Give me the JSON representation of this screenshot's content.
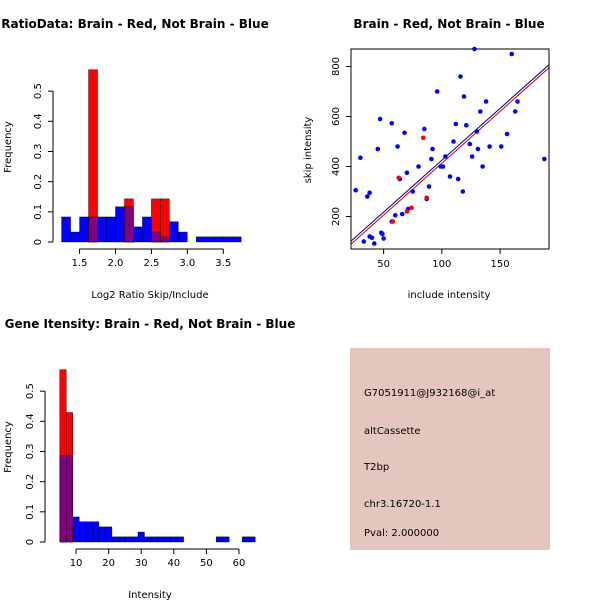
{
  "colors": {
    "red": "#ff0000",
    "blue": "#0000ff",
    "overlap": "#800080",
    "dark_red": "#cc0000",
    "info_bg": "#e5c6bf",
    "fit_red": "#cc0000",
    "fit_blue": "#000080"
  },
  "chart_data": [
    {
      "type": "bar",
      "title": "RatioData: Brain - Red, Not Brain - Blue",
      "xlabel": "Log2 Ratio Skip/Include",
      "ylabel": "Frequency",
      "xlim": [
        1.2,
        3.9
      ],
      "ylim": [
        0,
        0.58
      ],
      "xticks": [
        1.5,
        2.0,
        2.5,
        3.0,
        3.5
      ],
      "xtick_labels": [
        "1.5",
        "2.0",
        "2.5",
        "3.0",
        "3.5"
      ],
      "yticks": [
        0,
        0.1,
        0.2,
        0.3,
        0.4,
        0.5
      ],
      "ytick_labels": [
        "0",
        "0.1",
        "0.2",
        "0.3",
        "0.4",
        "0.5"
      ],
      "bin_width": 0.125,
      "series": [
        {
          "name": "Not Brain",
          "color": "blue",
          "bins": [
            [
              1.25,
              0.083
            ],
            [
              1.375,
              0.033
            ],
            [
              1.5,
              0.083
            ],
            [
              1.625,
              0.083
            ],
            [
              1.75,
              0.083
            ],
            [
              1.875,
              0.083
            ],
            [
              2.0,
              0.117
            ],
            [
              2.125,
              0.117
            ],
            [
              2.25,
              0.05
            ],
            [
              2.375,
              0.083
            ],
            [
              2.5,
              0.033
            ],
            [
              2.625,
              0.017
            ],
            [
              2.75,
              0.067
            ],
            [
              2.875,
              0.033
            ],
            [
              3.125,
              0.017
            ],
            [
              3.25,
              0.017
            ],
            [
              3.375,
              0.017
            ],
            [
              3.5,
              0.017
            ],
            [
              3.625,
              0.017
            ]
          ]
        },
        {
          "name": "Brain",
          "color": "red",
          "bins": [
            [
              1.625,
              0.571
            ],
            [
              2.125,
              0.143
            ],
            [
              2.5,
              0.143
            ],
            [
              2.625,
              0.143
            ]
          ]
        }
      ]
    },
    {
      "type": "scatter",
      "title": "Brain - Red, Not Brain - Blue",
      "xlabel": "include intensity",
      "ylabel": "skip intensity",
      "xlim": [
        22,
        192
      ],
      "ylim": [
        70,
        870
      ],
      "xticks": [
        50,
        100,
        150
      ],
      "xtick_labels": [
        "50",
        "100",
        "150"
      ],
      "yticks": [
        200,
        400,
        600,
        800
      ],
      "ytick_labels": [
        "200",
        "400",
        "600",
        "800"
      ],
      "fit_lines": [
        {
          "name": "red fit",
          "color": "fit_red",
          "intercept": -2,
          "slope": 4.15
        },
        {
          "name": "blue fit",
          "color": "fit_blue",
          "intercept": 10,
          "slope": 4.15
        }
      ],
      "series": [
        {
          "name": "Not Brain",
          "color": "blue",
          "points": [
            [
              26,
              305
            ],
            [
              30,
              435
            ],
            [
              33,
              100
            ],
            [
              36,
              280
            ],
            [
              38,
              295
            ],
            [
              38,
              120
            ],
            [
              40,
              115
            ],
            [
              42,
              92
            ],
            [
              45,
              470
            ],
            [
              47,
              590
            ],
            [
              48,
              135
            ],
            [
              49,
              130
            ],
            [
              50,
              112
            ],
            [
              57,
              573
            ],
            [
              57,
              180
            ],
            [
              60,
              205
            ],
            [
              62,
              480
            ],
            [
              64,
              350
            ],
            [
              66,
              210
            ],
            [
              68,
              535
            ],
            [
              70,
              375
            ],
            [
              71,
              230
            ],
            [
              75,
              300
            ],
            [
              80,
              400
            ],
            [
              85,
              550
            ],
            [
              87,
              270
            ],
            [
              89,
              320
            ],
            [
              91,
              430
            ],
            [
              92,
              470
            ],
            [
              96,
              700
            ],
            [
              99,
              400
            ],
            [
              101,
              400
            ],
            [
              103,
              440
            ],
            [
              107,
              360
            ],
            [
              110,
              500
            ],
            [
              112,
              570
            ],
            [
              114,
              350
            ],
            [
              116,
              760
            ],
            [
              118,
              300
            ],
            [
              119,
              680
            ],
            [
              121,
              565
            ],
            [
              124,
              490
            ],
            [
              126,
              440
            ],
            [
              128,
              870
            ],
            [
              130,
              540
            ],
            [
              131,
              470
            ],
            [
              133,
              620
            ],
            [
              135,
              400
            ],
            [
              138,
              660
            ],
            [
              141,
              480
            ],
            [
              151,
              480
            ],
            [
              156,
              530
            ],
            [
              160,
              850
            ],
            [
              163,
              620
            ],
            [
              165,
              660
            ],
            [
              188,
              430
            ]
          ]
        },
        {
          "name": "Brain",
          "color": "red",
          "points": [
            [
              58,
              180
            ],
            [
              63,
              355
            ],
            [
              70,
              220
            ],
            [
              74,
              235
            ],
            [
              84,
              515
            ],
            [
              87,
              275
            ]
          ]
        }
      ]
    },
    {
      "type": "bar",
      "title": "Gene Itensity: Brain - Red, Not Brain - Blue",
      "xlabel": "Intensity",
      "ylabel": "Frequency",
      "xlim": [
        2,
        64
      ],
      "ylim": [
        0,
        0.58
      ],
      "xticks": [
        10,
        20,
        30,
        40,
        50,
        60
      ],
      "xtick_labels": [
        "10",
        "20",
        "30",
        "40",
        "50",
        "60"
      ],
      "yticks": [
        0,
        0.1,
        0.2,
        0.3,
        0.4,
        0.5
      ],
      "ytick_labels": [
        "0",
        "0.1",
        "0.2",
        "0.3",
        "0.4",
        "0.5"
      ],
      "bin_width": 2,
      "series": [
        {
          "name": "Not Brain",
          "color": "blue",
          "bins": [
            [
              5,
              0.286
            ],
            [
              7,
              0.286
            ],
            [
              9,
              0.083
            ],
            [
              11,
              0.067
            ],
            [
              13,
              0.067
            ],
            [
              15,
              0.067
            ],
            [
              17,
              0.05
            ],
            [
              19,
              0.05
            ],
            [
              21,
              0.017
            ],
            [
              23,
              0.017
            ],
            [
              25,
              0.017
            ],
            [
              27,
              0.017
            ],
            [
              29,
              0.033
            ],
            [
              31,
              0.017
            ],
            [
              33,
              0.017
            ],
            [
              35,
              0.017
            ],
            [
              37,
              0.017
            ],
            [
              39,
              0.017
            ],
            [
              41,
              0.017
            ],
            [
              53,
              0.017
            ],
            [
              55,
              0.017
            ],
            [
              61,
              0.017
            ],
            [
              63,
              0.017
            ]
          ]
        },
        {
          "name": "Brain",
          "color": "red",
          "bins": [
            [
              5,
              0.571
            ],
            [
              7,
              0.429
            ]
          ]
        }
      ]
    }
  ],
  "info_panel": {
    "probe_id": "G7051911@J932168@i_at",
    "event_type": "altCassette",
    "bp": "T2bp",
    "location": "chr3.16720-1.1",
    "pval": "Pval: 2.000000"
  }
}
